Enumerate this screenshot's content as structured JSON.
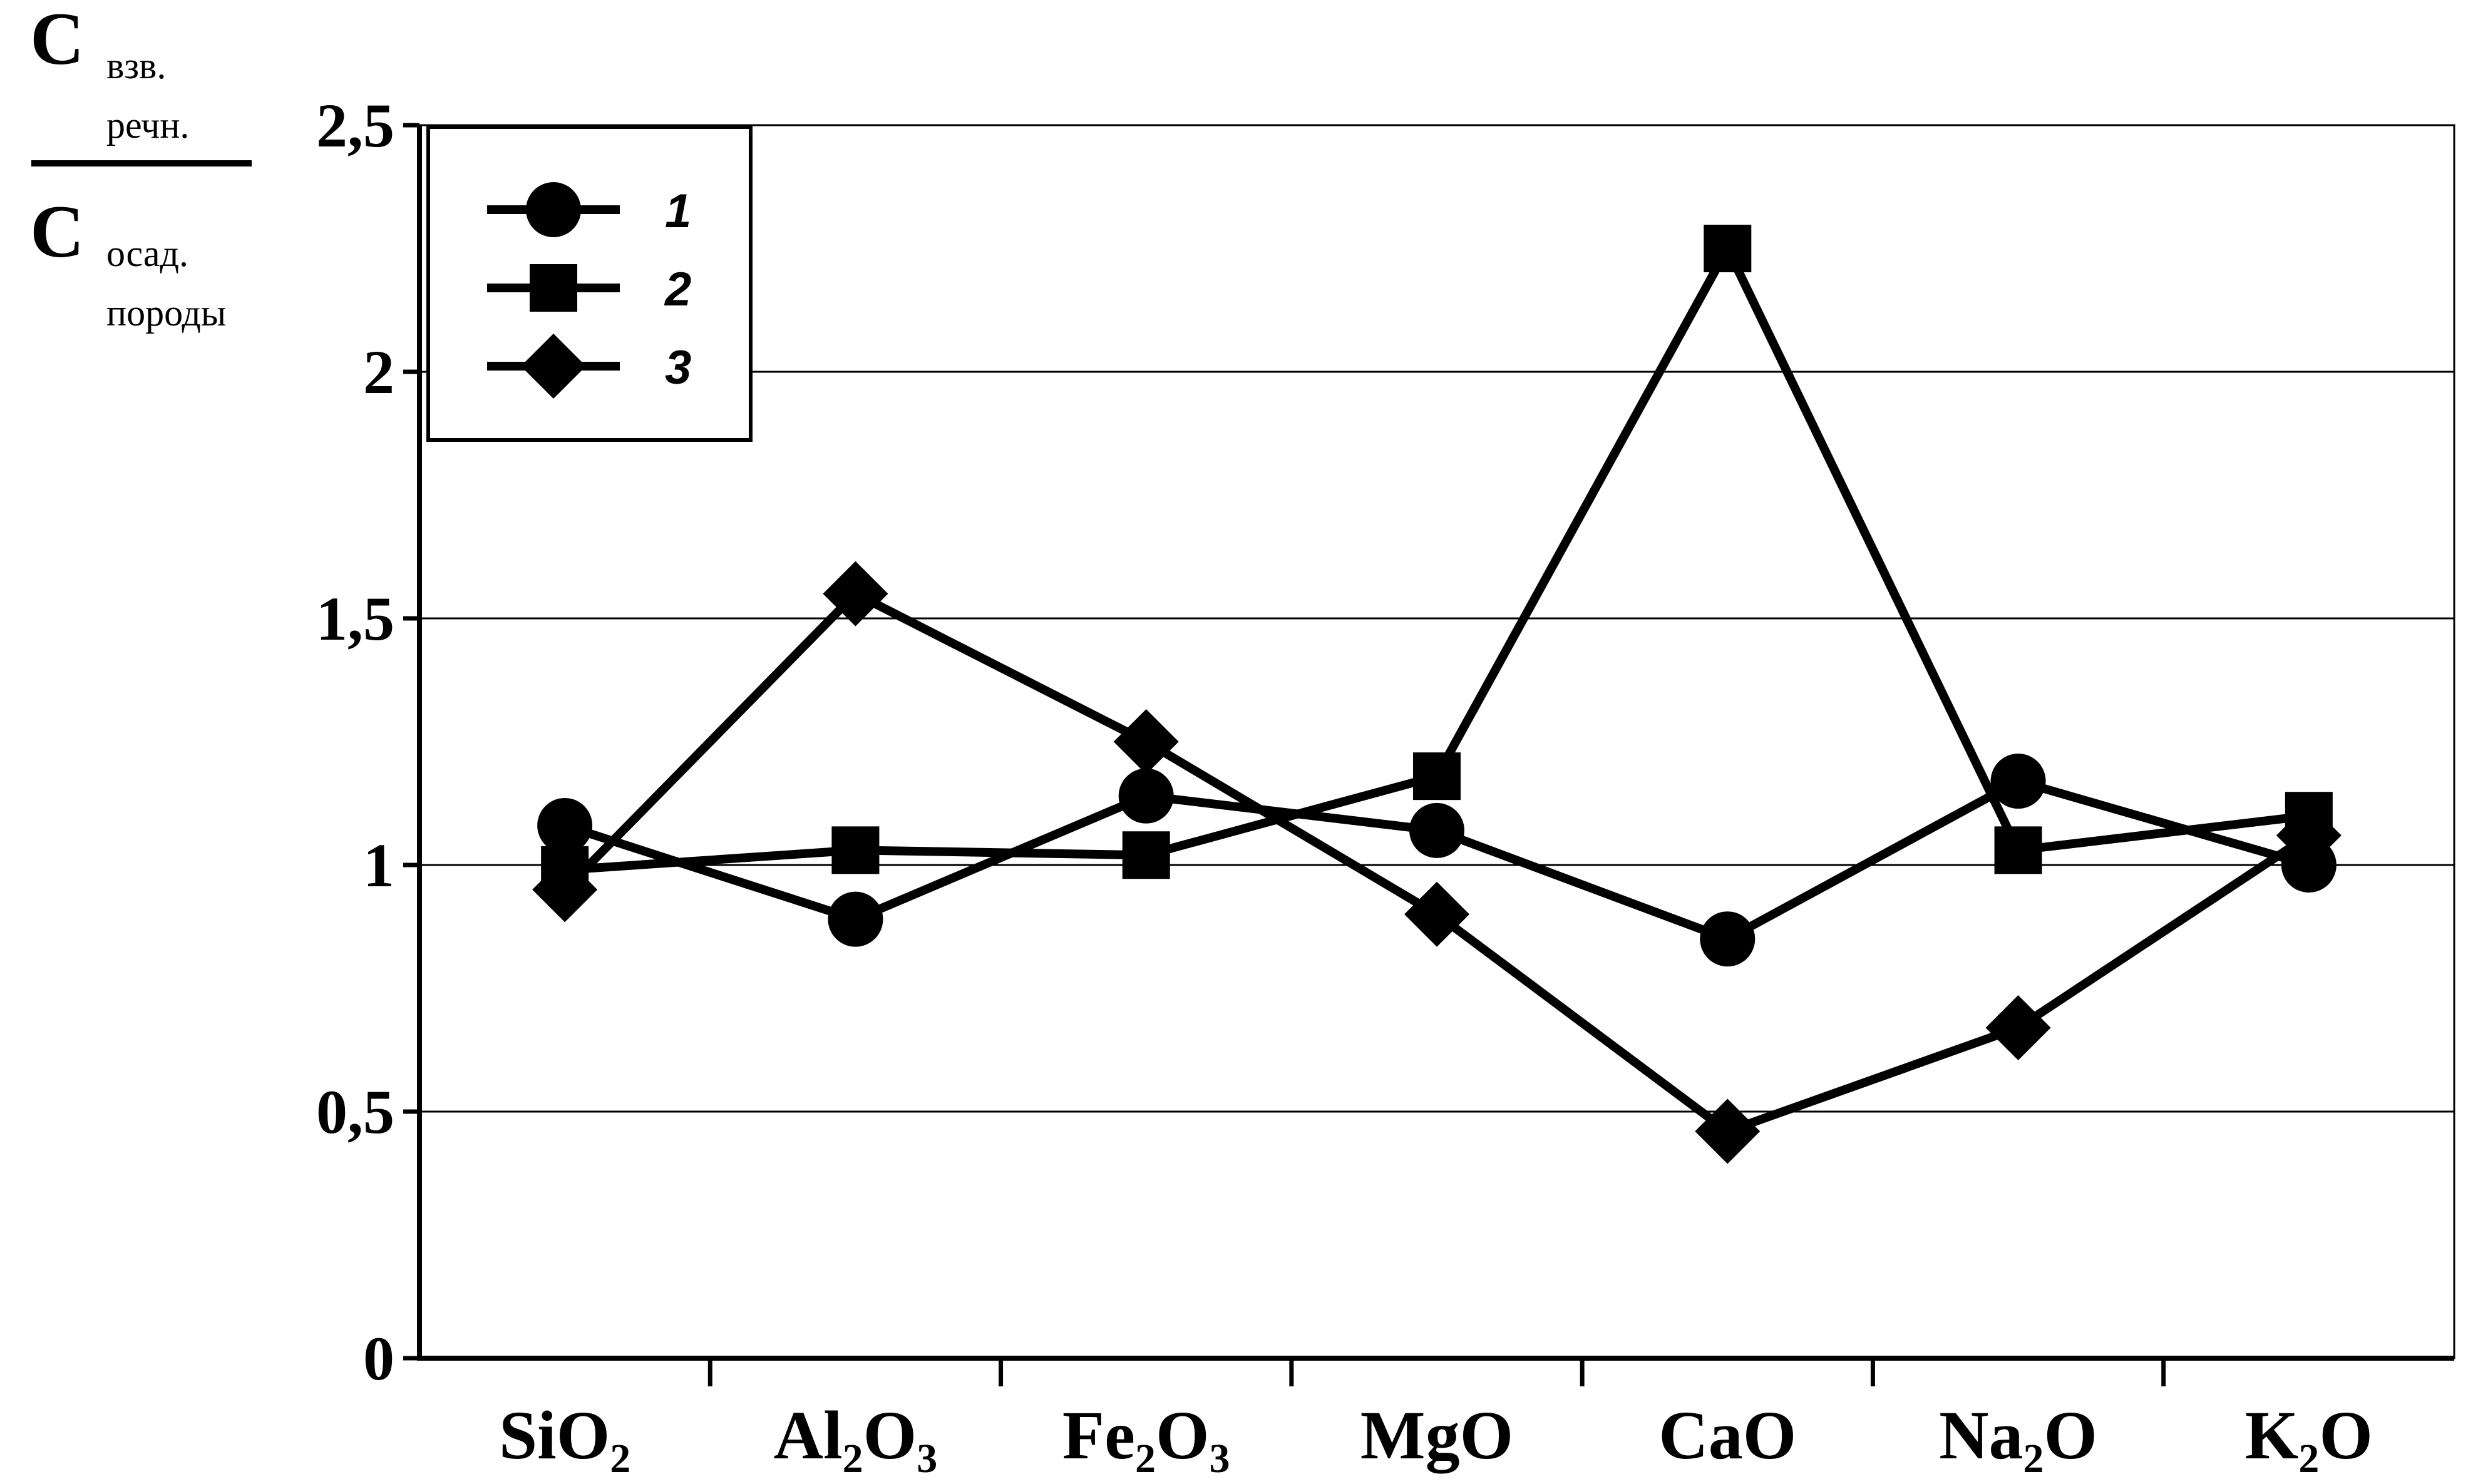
{
  "chart_data": {
    "type": "line",
    "ylabel": {
      "numerator_main": "С",
      "numerator_sub_1": "взв.",
      "numerator_sub_2": "речн.",
      "denominator_main": "С",
      "denominator_sub_1": "осад.",
      "denominator_sub_2": "породы"
    },
    "ylim": [
      0,
      2.5
    ],
    "yticks": [
      {
        "value": 0,
        "label": "0"
      },
      {
        "value": 0.5,
        "label": "0,5"
      },
      {
        "value": 1,
        "label": "1"
      },
      {
        "value": 1.5,
        "label": "1,5"
      },
      {
        "value": 2,
        "label": "2"
      },
      {
        "value": 2.5,
        "label": "2,5"
      }
    ],
    "categories": [
      {
        "base": "Si",
        "parts": [
          [
            "O",
            "2"
          ]
        ],
        "label": "SiO2"
      },
      {
        "base": "Al",
        "sub1": "2",
        "parts": [
          [
            "O",
            "3"
          ]
        ],
        "label": "Al2O3"
      },
      {
        "base": "Fe",
        "sub1": "2",
        "parts": [
          [
            "O",
            "3"
          ]
        ],
        "label": "Fe2O3"
      },
      {
        "base": "MgO",
        "parts": [],
        "label": "MgO"
      },
      {
        "base": "CaO",
        "parts": [],
        "label": "CaO"
      },
      {
        "base": "Na",
        "sub1": "2",
        "parts": [
          [
            "O",
            ""
          ]
        ],
        "label": "Na2O"
      },
      {
        "base": "K",
        "sub1": "2",
        "parts": [
          [
            "O",
            ""
          ]
        ],
        "label": "K2O"
      }
    ],
    "series": [
      {
        "name": "1",
        "marker": "circle",
        "values": [
          1.08,
          0.89,
          1.14,
          1.07,
          0.85,
          1.17,
          1.0
        ]
      },
      {
        "name": "2",
        "marker": "square",
        "values": [
          0.99,
          1.03,
          1.02,
          1.18,
          2.25,
          1.03,
          1.1
        ]
      },
      {
        "name": "3",
        "marker": "diamond",
        "values": [
          0.95,
          1.55,
          1.25,
          0.9,
          0.46,
          0.67,
          1.06
        ]
      }
    ],
    "grid": true,
    "legend_position": "top-left",
    "colors": {
      "line": "#000000",
      "grid": "#000000",
      "background": "#ffffff"
    }
  }
}
